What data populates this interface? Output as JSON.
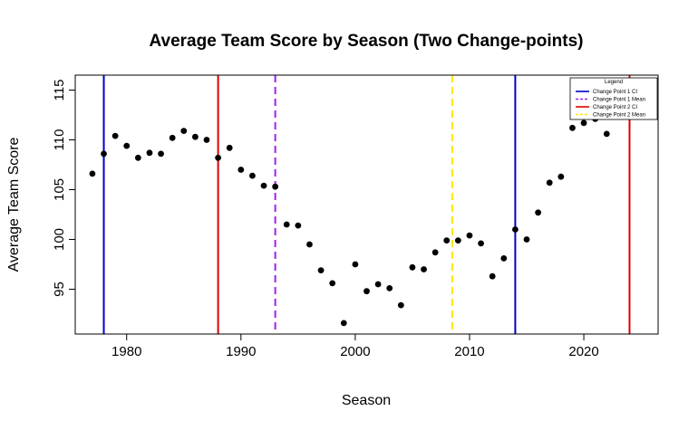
{
  "chart_data": {
    "type": "scatter",
    "title": "Average Team Score by Season (Two Change-points)",
    "xlabel": "Season",
    "ylabel": "Average Team Score",
    "xlim": [
      1975.5,
      2026.5
    ],
    "ylim": [
      90.5,
      116.5
    ],
    "xticks": [
      1980,
      1990,
      2000,
      2010,
      2020
    ],
    "yticks": [
      95,
      100,
      105,
      110,
      115
    ],
    "grid": false,
    "legend_position": "top-right",
    "legend_title": "Legend",
    "point_color": "#000000",
    "x": [
      1977,
      1978,
      1979,
      1980,
      1981,
      1982,
      1983,
      1984,
      1985,
      1986,
      1987,
      1988,
      1989,
      1990,
      1991,
      1992,
      1993,
      1994,
      1995,
      1996,
      1997,
      1998,
      1999,
      2000,
      2001,
      2002,
      2003,
      2004,
      2005,
      2006,
      2007,
      2008,
      2009,
      2010,
      2011,
      2012,
      2013,
      2014,
      2015,
      2016,
      2017,
      2018,
      2019,
      2020,
      2021,
      2022
    ],
    "y": [
      106.6,
      108.6,
      110.4,
      109.4,
      108.2,
      108.7,
      108.6,
      110.2,
      110.9,
      110.3,
      110.0,
      108.2,
      109.2,
      107.0,
      106.4,
      105.4,
      105.3,
      101.5,
      101.4,
      99.5,
      96.9,
      95.6,
      91.6,
      97.5,
      94.8,
      95.5,
      95.1,
      93.4,
      97.2,
      97.0,
      98.7,
      99.9,
      99.9,
      100.4,
      99.6,
      96.3,
      98.1,
      101.0,
      100.0,
      102.7,
      105.7,
      106.3,
      111.2,
      111.7,
      112.1,
      110.6
    ],
    "vlines": [
      {
        "x": 1978.0,
        "color": "#0000CC",
        "style": "solid",
        "series": 0
      },
      {
        "x": 2014.0,
        "color": "#0000CC",
        "style": "solid",
        "series": 0
      },
      {
        "x": 1993.0,
        "color": "#A020F0",
        "style": "dashed",
        "series": 1
      },
      {
        "x": 1988.0,
        "color": "#DD0000",
        "style": "solid",
        "series": 2
      },
      {
        "x": 2024.0,
        "color": "#DD0000",
        "style": "solid",
        "series": 2
      },
      {
        "x": 2008.5,
        "color": "#FFE600",
        "style": "dashed",
        "series": 3
      }
    ],
    "legend": [
      {
        "name": "Change Point 1 CI",
        "color": "#0000CC",
        "style": "solid"
      },
      {
        "name": "Change Point 1 Mean",
        "color": "#A020F0",
        "style": "dashed"
      },
      {
        "name": "Change Point 2 CI",
        "color": "#DD0000",
        "style": "solid"
      },
      {
        "name": "Change Point 2 Mean",
        "color": "#FFE600",
        "style": "dashed"
      }
    ]
  }
}
